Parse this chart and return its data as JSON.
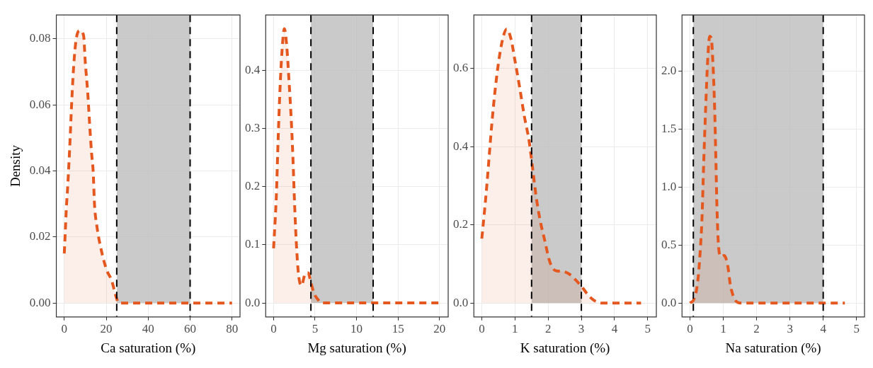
{
  "chart_data": [
    {
      "type": "area",
      "xlabel": "Ca saturation (%)",
      "ylabel": "Density",
      "xlim": [
        -3.8,
        83.8
      ],
      "ylim": [
        -0.0042,
        0.0872
      ],
      "xticks": [
        0,
        20,
        40,
        60,
        80
      ],
      "yticks": [
        {
          "value": 0,
          "label": "0.00"
        },
        {
          "value": 0.02,
          "label": "0.02"
        },
        {
          "value": 0.04,
          "label": "0.04"
        },
        {
          "value": 0.06,
          "label": "0.06"
        },
        {
          "value": 0.08,
          "label": "0.08"
        }
      ],
      "grid": true,
      "line_style": "dashed",
      "series": [
        {
          "color": "#e4581f",
          "x": [
            0,
            0.5,
            1,
            1.6,
            2.8,
            3.4,
            4.5,
            5.7,
            7.4,
            9.2,
            10,
            11.2,
            12.1,
            13,
            13.8,
            14.4,
            15.6,
            17.3,
            20.2,
            22.5,
            24.9,
            26,
            80
          ],
          "values": [
            0.015,
            0.022,
            0.029,
            0.035,
            0.05,
            0.059,
            0.072,
            0.08,
            0.0825,
            0.081,
            0.073,
            0.0635,
            0.054,
            0.0455,
            0.0395,
            0.03,
            0.023,
            0.017,
            0.01,
            0.007,
            0.0015,
            0,
            0
          ]
        }
      ],
      "bands": [
        {
          "axis": "x",
          "from": 25,
          "to": 60,
          "color": "#bdbdbd"
        }
      ],
      "ref_lines": [
        {
          "axis": "x",
          "value": 25,
          "color": "#000000",
          "line_style": "dashed"
        },
        {
          "axis": "x",
          "value": 60,
          "color": "#000000",
          "line_style": "dashed"
        }
      ]
    },
    {
      "type": "area",
      "xlabel": "Mg saturation (%)",
      "xlim": [
        -0.95,
        21.04
      ],
      "ylim": [
        -0.024,
        0.4955
      ],
      "xticks": [
        0,
        5,
        10,
        15,
        20
      ],
      "yticks": [
        {
          "value": 0,
          "label": "0.0"
        },
        0.1,
        0.2,
        0.3,
        0.4
      ],
      "grid": true,
      "line_style": "dashed",
      "series": [
        {
          "color": "#e4581f",
          "x": [
            0,
            0.2,
            0.35,
            0.5,
            0.63,
            0.78,
            1,
            1.3,
            1.58,
            1.87,
            2.16,
            2.36,
            2.5,
            2.73,
            3,
            3.36,
            3.8,
            4.17,
            4.5,
            4.9,
            5.4,
            5.7,
            20
          ],
          "values": [
            0.094,
            0.145,
            0.19,
            0.26,
            0.315,
            0.37,
            0.43,
            0.472,
            0.443,
            0.38,
            0.307,
            0.24,
            0.183,
            0.107,
            0.05,
            0.03,
            0.05,
            0.052,
            0.035,
            0.016,
            0.005,
            0,
            0
          ]
        }
      ],
      "bands": [
        {
          "axis": "x",
          "from": 4.5,
          "to": 12,
          "color": "#bdbdbd"
        }
      ],
      "ref_lines": [
        {
          "axis": "x",
          "value": 4.5,
          "color": "#000000",
          "line_style": "dashed"
        },
        {
          "axis": "x",
          "value": 12,
          "color": "#000000",
          "line_style": "dashed"
        }
      ]
    },
    {
      "type": "area",
      "xlabel": "K saturation (%)",
      "xlim": [
        -0.24,
        5.26
      ],
      "ylim": [
        -0.0355,
        0.737
      ],
      "xticks": [
        0,
        1,
        2,
        3,
        4,
        5
      ],
      "yticks": [
        {
          "value": 0,
          "label": "0.0"
        },
        0.2,
        0.4,
        0.6
      ],
      "grid": true,
      "line_style": "dashed",
      "series": [
        {
          "color": "#e4581f",
          "x": [
            0,
            0.09,
            0.16,
            0.23,
            0.3,
            0.41,
            0.52,
            0.63,
            0.75,
            0.88,
            0.99,
            1.14,
            1.28,
            1.43,
            1.54,
            1.64,
            1.75,
            1.9,
            2.04,
            2.22,
            2.44,
            2.62,
            2.84,
            3.02,
            3.2,
            3.38,
            3.6,
            4.8
          ],
          "values": [
            0.165,
            0.243,
            0.31,
            0.384,
            0.457,
            0.552,
            0.625,
            0.676,
            0.701,
            0.676,
            0.625,
            0.552,
            0.479,
            0.412,
            0.339,
            0.271,
            0.215,
            0.159,
            0.108,
            0.083,
            0.081,
            0.075,
            0.058,
            0.041,
            0.021,
            0.007,
            0,
            0
          ]
        }
      ],
      "bands": [
        {
          "axis": "x",
          "from": 1.5,
          "to": 3,
          "color": "#bdbdbd"
        }
      ],
      "ref_lines": [
        {
          "axis": "x",
          "value": 1.5,
          "color": "#000000",
          "line_style": "dashed"
        },
        {
          "axis": "x",
          "value": 3,
          "color": "#000000",
          "line_style": "dashed"
        }
      ]
    },
    {
      "type": "area",
      "xlabel": "Na saturation (%)",
      "xlim": [
        -0.24,
        5.24
      ],
      "ylim": [
        -0.12,
        2.484
      ],
      "xticks": [
        0,
        1,
        2,
        3,
        4,
        5
      ],
      "yticks": [
        {
          "value": 0,
          "label": "0.0"
        },
        {
          "value": 0.5,
          "label": "0.5"
        },
        {
          "value": 1,
          "label": "1.0"
        },
        {
          "value": 1.5,
          "label": "1.5"
        },
        {
          "value": 2,
          "label": "2.0"
        }
      ],
      "grid": true,
      "line_style": "dashed",
      "series": [
        {
          "color": "#e4581f",
          "x": [
            0,
            0.12,
            0.23,
            0.3,
            0.36,
            0.41,
            0.47,
            0.53,
            0.59,
            0.64,
            0.69,
            0.74,
            0.78,
            0.81,
            0.86,
            0.93,
            1.03,
            1.14,
            1.21,
            1.32,
            1.43,
            1.54,
            4.65
          ],
          "values": [
            0,
            0.034,
            0.18,
            0.42,
            0.73,
            1.2,
            1.68,
            2.09,
            2.3,
            2.28,
            2.06,
            1.68,
            1.2,
            0.82,
            0.48,
            0.4,
            0.41,
            0.31,
            0.16,
            0.044,
            0.006,
            0,
            0
          ]
        }
      ],
      "bands": [
        {
          "axis": "x",
          "from": 0.1,
          "to": 4,
          "color": "#bdbdbd"
        }
      ],
      "ref_lines": [
        {
          "axis": "x",
          "value": 0.1,
          "color": "#000000",
          "line_style": "dashed"
        },
        {
          "axis": "x",
          "value": 4,
          "color": "#000000",
          "line_style": "dashed"
        }
      ]
    }
  ]
}
